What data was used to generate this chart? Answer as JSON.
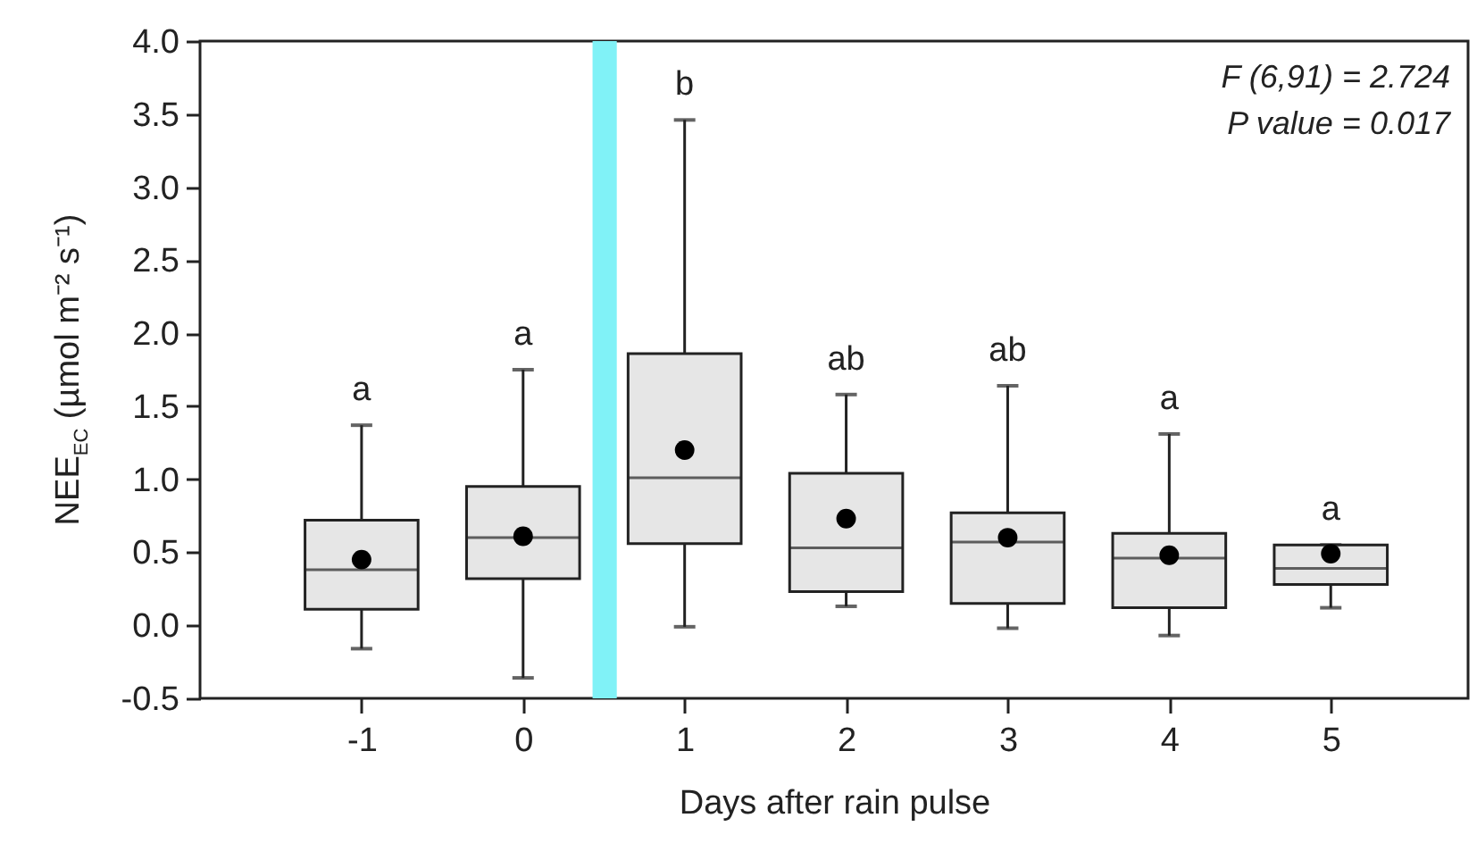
{
  "chart_data": {
    "type": "box",
    "xlabel": "Days after rain pulse",
    "ylabel": "NEE$_{EC}$ (µmol m⁻² s⁻¹)",
    "x": [
      -1,
      0,
      1,
      2,
      3,
      4,
      5
    ],
    "series": [
      {
        "color": "#e6e6e6",
        "boxes": [
          {
            "low": -0.16,
            "q1": 0.11,
            "median": 0.38,
            "q3": 0.72,
            "high": 1.37,
            "mean": 0.45
          },
          {
            "low": -0.36,
            "q1": 0.32,
            "median": 0.6,
            "q3": 0.95,
            "high": 1.75,
            "mean": 0.61
          },
          {
            "low": -0.01,
            "q1": 0.56,
            "median": 1.01,
            "q3": 1.86,
            "high": 3.46,
            "mean": 1.2
          },
          {
            "low": 0.13,
            "q1": 0.23,
            "median": 0.53,
            "q3": 1.04,
            "high": 1.58,
            "mean": 0.73
          },
          {
            "low": -0.02,
            "q1": 0.15,
            "median": 0.57,
            "q3": 0.77,
            "high": 1.64,
            "mean": 0.6
          },
          {
            "low": -0.07,
            "q1": 0.12,
            "median": 0.46,
            "q3": 0.63,
            "high": 1.31,
            "mean": 0.48
          },
          {
            "low": 0.12,
            "q1": 0.28,
            "median": 0.39,
            "q3": 0.55,
            "high": 0.55,
            "mean": 0.49
          }
        ]
      }
    ],
    "xlim": [
      -2,
      5.85
    ],
    "xticks": [
      -1,
      0,
      1,
      2,
      3,
      4,
      5
    ],
    "ylim": [
      -0.5,
      4.0
    ],
    "yticks": [
      -0.5,
      {
        "value": 0,
        "label": "0.0"
      },
      0.5,
      {
        "value": 1,
        "label": "1.0"
      },
      1.5,
      {
        "value": 2,
        "label": "2.0"
      },
      2.5,
      {
        "value": 3,
        "label": "3.0"
      },
      3.5,
      {
        "value": 4,
        "label": "4.0"
      }
    ],
    "bands": [
      {
        "axis": "x",
        "from": 0.43,
        "to": 0.58,
        "color": "#80f2f7"
      }
    ],
    "annotations": [
      "F (6,91) = 2.724",
      "P value = 0.017",
      {
        "text": "a",
        "x": -1,
        "y": 1.37
      },
      {
        "text": "a",
        "x": 0,
        "y": 1.75
      },
      {
        "text": "b",
        "x": 1,
        "y": 3.46
      },
      {
        "text": "ab",
        "x": 2,
        "y": 1.58
      },
      {
        "text": "ab",
        "x": 3,
        "y": 1.64
      },
      {
        "text": "a",
        "x": 4,
        "y": 1.31
      },
      {
        "text": "a",
        "x": 5,
        "y": 0.55
      }
    ],
    "grid": false
  }
}
